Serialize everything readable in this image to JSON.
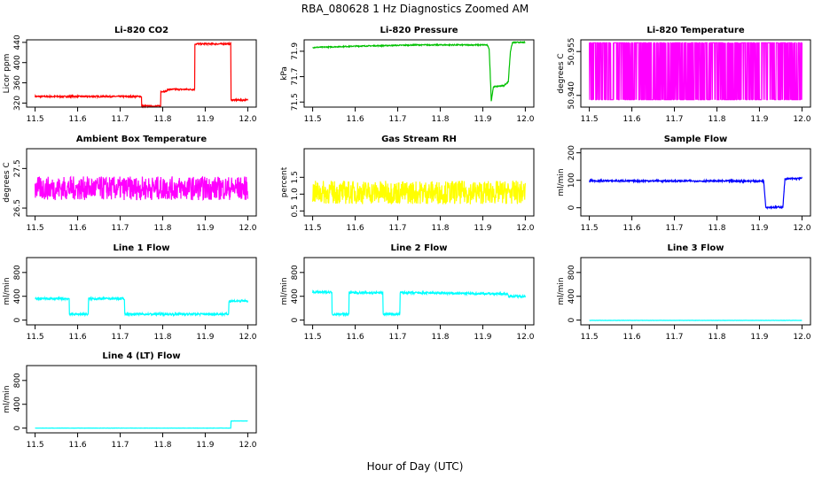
{
  "figure": {
    "title": "RBA_080628  1 Hz Diagnostics Zoomed AM",
    "xlabel": "Hour of Day (UTC)"
  },
  "chart_data": [
    {
      "type": "line",
      "title": "Li-820 CO2",
      "ylabel": "Licor ppm",
      "color": "#ff0000",
      "xlim": [
        11.48,
        12.02
      ],
      "xticks": [
        "11.5",
        "11.6",
        "11.7",
        "11.8",
        "11.9",
        "12.0"
      ],
      "ylim": [
        312,
        445
      ],
      "yticks": [
        "320",
        "360",
        "400",
        "440"
      ],
      "series": [
        {
          "x": [
            11.5,
            11.75,
            11.75,
            11.795,
            11.795,
            11.81,
            11.81,
            11.875,
            11.875,
            11.96,
            11.96,
            12.0
          ],
          "y": [
            333,
            333,
            314,
            314,
            343,
            343,
            347,
            347,
            437,
            437,
            326,
            326
          ],
          "noise": 1.5
        }
      ]
    },
    {
      "type": "line",
      "title": "Li-820 Pressure",
      "ylabel": "kPa",
      "color": "#00c000",
      "xlim": [
        11.48,
        12.02
      ],
      "xticks": [
        "11.5",
        "11.6",
        "11.7",
        "11.8",
        "11.9",
        "12.0"
      ],
      "ylim": [
        71.46,
        71.99
      ],
      "yticks": [
        "71.5",
        "71.7",
        "71.9"
      ],
      "series": [
        {
          "x": [
            11.5,
            11.6,
            11.75,
            11.91,
            11.915,
            11.92,
            11.925,
            11.95,
            11.96,
            11.965,
            11.97,
            11.98,
            12.0
          ],
          "y": [
            71.93,
            71.94,
            71.95,
            71.95,
            71.92,
            71.51,
            71.62,
            71.63,
            71.66,
            71.9,
            71.97,
            71.97,
            71.97
          ],
          "noise": 0.004
        }
      ]
    },
    {
      "type": "line",
      "title": "Li-820 Temperature",
      "ylabel": "degrees C",
      "color": "#ff00ff",
      "xlim": [
        11.48,
        12.02
      ],
      "xticks": [
        "11.5",
        "11.6",
        "11.7",
        "11.8",
        "11.9",
        "12.0"
      ],
      "ylim": [
        50.936,
        50.959
      ],
      "yticks": [
        "50.940",
        "50.955"
      ],
      "series": [
        {
          "x": [
            11.5,
            12.0
          ],
          "y": [
            50.9385,
            50.958
          ],
          "pattern": "binary-toggle"
        }
      ]
    },
    {
      "type": "line",
      "title": "Ambient Box Temperature",
      "ylabel": "degrees C",
      "color": "#ff00ff",
      "xlim": [
        11.48,
        12.02
      ],
      "xticks": [
        "11.5",
        "11.6",
        "11.7",
        "11.8",
        "11.9",
        "12.0"
      ],
      "ylim": [
        26.3,
        28.0
      ],
      "yticks": [
        "26.5",
        "27.5"
      ],
      "series": [
        {
          "x": [
            11.5,
            12.0
          ],
          "y": [
            27.0,
            27.0
          ],
          "noise": 0.3
        }
      ]
    },
    {
      "type": "line",
      "title": "Gas Stream RH",
      "ylabel": "percent",
      "color": "#ffff00",
      "xlim": [
        11.48,
        12.02
      ],
      "xticks": [
        "11.5",
        "11.6",
        "11.7",
        "11.8",
        "11.9",
        "12.0"
      ],
      "ylim": [
        0.35,
        2.35
      ],
      "yticks": [
        "0.5",
        "1.0",
        "1.5"
      ],
      "series": [
        {
          "x": [
            11.5,
            12.0
          ],
          "y": [
            1.05,
            1.05
          ],
          "noise": 0.35
        }
      ]
    },
    {
      "type": "line",
      "title": "Sample Flow",
      "ylabel": "ml/min",
      "color": "#0000ff",
      "xlim": [
        11.48,
        12.02
      ],
      "xticks": [
        "11.5",
        "11.6",
        "11.7",
        "11.8",
        "11.9",
        "12.0"
      ],
      "ylim": [
        -30,
        215
      ],
      "yticks": [
        "0",
        "100",
        "200"
      ],
      "series": [
        {
          "x": [
            11.5,
            11.91,
            11.915,
            11.955,
            11.96,
            12.0
          ],
          "y": [
            98,
            97,
            2,
            2,
            105,
            107
          ],
          "noise": 3
        }
      ]
    },
    {
      "type": "line",
      "title": "Line 1 Flow",
      "ylabel": "ml/min",
      "color": "#00ffff",
      "xlim": [
        11.48,
        12.02
      ],
      "xticks": [
        "11.5",
        "11.6",
        "11.7",
        "11.8",
        "11.9",
        "12.0"
      ],
      "ylim": [
        -80,
        1050
      ],
      "yticks": [
        "0",
        "400",
        "800"
      ],
      "series": [
        {
          "x": [
            11.5,
            11.58,
            11.58,
            11.625,
            11.625,
            11.71,
            11.71,
            11.955,
            11.955,
            12.0
          ],
          "y": [
            360,
            360,
            100,
            100,
            360,
            360,
            100,
            100,
            320,
            320
          ],
          "noise": 18
        }
      ]
    },
    {
      "type": "line",
      "title": "Line 2 Flow",
      "ylabel": "ml/min",
      "color": "#00ffff",
      "xlim": [
        11.48,
        12.02
      ],
      "xticks": [
        "11.5",
        "11.6",
        "11.7",
        "11.8",
        "11.9",
        "12.0"
      ],
      "ylim": [
        -80,
        1050
      ],
      "yticks": [
        "0",
        "400",
        "800"
      ],
      "series": [
        {
          "x": [
            11.5,
            11.545,
            11.545,
            11.585,
            11.585,
            11.665,
            11.665,
            11.705,
            11.705,
            11.96,
            11.96,
            12.0
          ],
          "y": [
            470,
            470,
            100,
            100,
            460,
            460,
            100,
            100,
            460,
            440,
            400,
            400
          ],
          "noise": 18
        }
      ]
    },
    {
      "type": "line",
      "title": "Line 3 Flow",
      "ylabel": "ml/min",
      "color": "#00ffff",
      "xlim": [
        11.48,
        12.02
      ],
      "xticks": [
        "11.5",
        "11.6",
        "11.7",
        "11.8",
        "11.9",
        "12.0"
      ],
      "ylim": [
        -80,
        1050
      ],
      "yticks": [
        "0",
        "400",
        "800"
      ],
      "series": [
        {
          "x": [
            11.5,
            12.0
          ],
          "y": [
            -5,
            -5
          ],
          "noise": 2
        }
      ]
    },
    {
      "type": "line",
      "title": "Line 4 (LT) Flow",
      "ylabel": "ml/min",
      "color": "#00ffff",
      "xlim": [
        11.48,
        12.02
      ],
      "xticks": [
        "11.5",
        "11.6",
        "11.7",
        "11.8",
        "11.9",
        "12.0"
      ],
      "ylim": [
        -80,
        1050
      ],
      "yticks": [
        "0",
        "400",
        "800"
      ],
      "series": [
        {
          "x": [
            11.5,
            11.96,
            11.96,
            12.0
          ],
          "y": [
            0,
            0,
            120,
            120
          ],
          "noise": 2
        }
      ]
    }
  ]
}
